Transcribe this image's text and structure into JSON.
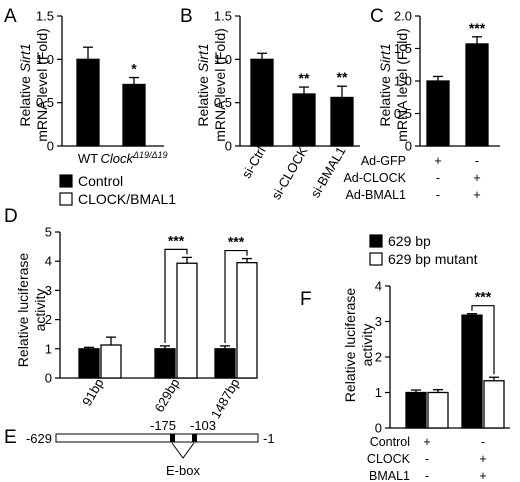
{
  "panels": {
    "A": {
      "letter": "A",
      "ylabel1": "Relative ",
      "ylabel_em": "Sirt1",
      "ylabel2": "mRNA level (Fold)"
    },
    "B": {
      "letter": "B",
      "ylabel1": "Relative ",
      "ylabel_em": "Sirt1",
      "ylabel2": "mRNA level (Fold)"
    },
    "C": {
      "letter": "C",
      "ylabel1": "Relative ",
      "ylabel_em": "Sirt1",
      "ylabel2": "mRNA level (Fold)",
      "conditions": [
        {
          "label": "Ad-GFP",
          "marks": [
            "+",
            "-"
          ]
        },
        {
          "label": "Ad-CLOCK",
          "marks": [
            "-",
            "+"
          ]
        },
        {
          "label": "Ad-BMAL1",
          "marks": [
            "-",
            "+"
          ]
        }
      ]
    },
    "D": {
      "letter": "D",
      "ylabel1": "Relative luciferase",
      "ylabel2": "activity"
    },
    "E": {
      "letter": "E",
      "left_label": "-629",
      "right_label": "-1",
      "site1": "-175",
      "site2": "-103",
      "ebox": "E-box"
    },
    "F": {
      "letter": "F",
      "ylabel1": "Relative luciferase",
      "ylabel2": "activity",
      "conditions": [
        {
          "label": "Control",
          "marks": [
            "+",
            "-"
          ]
        },
        {
          "label": "CLOCK",
          "marks": [
            "-",
            "+"
          ]
        },
        {
          "label": "BMAL1",
          "marks": [
            "-",
            "+"
          ]
        }
      ]
    }
  },
  "chart_data": [
    {
      "panel": "A",
      "type": "bar",
      "categories": [
        "WT",
        "ClockΔ19/Δ19"
      ],
      "category_main": [
        "WT",
        "Clock"
      ],
      "category_sup": [
        "",
        "Δ19/Δ19"
      ],
      "values": [
        1.0,
        0.71
      ],
      "errors": [
        0.14,
        0.08
      ],
      "significance": [
        "",
        "*"
      ],
      "ylim": [
        0,
        1.5
      ],
      "yticks": [
        "0",
        "0.5",
        "1.0",
        "1.5"
      ],
      "ytick_values": [
        0,
        0.5,
        1.0,
        1.5
      ],
      "ylabel": "Relative Sirt1 mRNA level (Fold)",
      "colors": [
        "#000000"
      ]
    },
    {
      "panel": "B",
      "type": "bar",
      "categories": [
        "si-Ctrl",
        "si-CLOCK",
        "si-BMAL1"
      ],
      "values": [
        1.0,
        0.6,
        0.56
      ],
      "errors": [
        0.07,
        0.08,
        0.13
      ],
      "significance": [
        "",
        "**",
        "**"
      ],
      "ylim": [
        0,
        1.5
      ],
      "yticks": [
        "0",
        "0.5",
        "1.0",
        "1.5"
      ],
      "ytick_values": [
        0,
        0.5,
        1.0,
        1.5
      ],
      "ylabel": "Relative Sirt1 mRNA level (Fold)",
      "colors": [
        "#000000"
      ]
    },
    {
      "panel": "C",
      "type": "bar",
      "categories": [
        "",
        ""
      ],
      "values": [
        1.0,
        1.57
      ],
      "errors": [
        0.07,
        0.11
      ],
      "significance": [
        "",
        "***"
      ],
      "ylim": [
        0,
        2.0
      ],
      "yticks": [
        "0",
        "0.5",
        "1.0",
        "1.5",
        "2.0"
      ],
      "ytick_values": [
        0,
        0.5,
        1.0,
        1.5,
        2.0
      ],
      "ylabel": "Relative Sirt1 mRNA level (Fold)",
      "colors": [
        "#000000"
      ]
    },
    {
      "panel": "D",
      "type": "bar",
      "categories": [
        "91bp",
        "629bp",
        "1487bp"
      ],
      "series": [
        {
          "name": "Control",
          "values": [
            1.0,
            1.0,
            1.0
          ],
          "errors": [
            0.05,
            0.1,
            0.1
          ],
          "fill": "#000000"
        },
        {
          "name": "CLOCK/BMAL1",
          "values": [
            1.13,
            3.93,
            3.95
          ],
          "errors": [
            0.27,
            0.2,
            0.14
          ],
          "fill": "#ffffff"
        }
      ],
      "significance": [
        "",
        "***",
        "***"
      ],
      "ylim": [
        0,
        5
      ],
      "yticks": [
        "0",
        "1",
        "2",
        "3",
        "4",
        "5"
      ],
      "ytick_values": [
        0,
        1,
        2,
        3,
        4,
        5
      ],
      "ylabel": "Relative luciferase activity",
      "legend": "top-left"
    },
    {
      "panel": "F",
      "type": "bar",
      "categories": [
        "",
        ""
      ],
      "series": [
        {
          "name": "629 bp",
          "values": [
            1.0,
            3.18
          ],
          "errors": [
            0.07,
            0.04
          ],
          "fill": "#000000"
        },
        {
          "name": "629 bp mutant",
          "values": [
            1.0,
            1.33
          ],
          "errors": [
            0.08,
            0.1
          ],
          "fill": "#ffffff"
        }
      ],
      "significance": [
        "",
        "***"
      ],
      "ylim": [
        0,
        4
      ],
      "yticks": [
        "0",
        "1",
        "2",
        "3",
        "4"
      ],
      "ytick_values": [
        0,
        1,
        2,
        3,
        4
      ],
      "ylabel": "Relative luciferase activity",
      "legend": "top-left"
    }
  ]
}
